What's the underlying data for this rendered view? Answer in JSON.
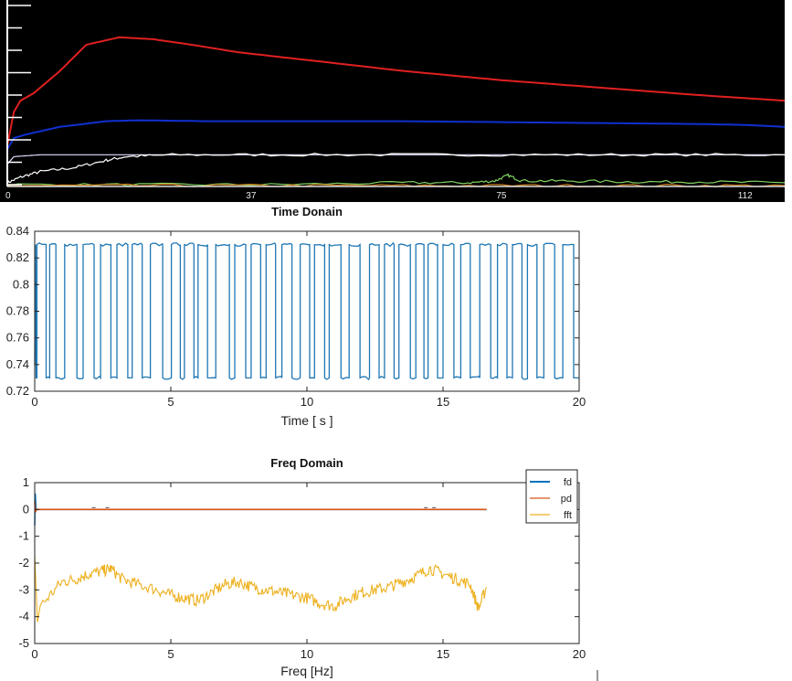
{
  "chart_data": [
    {
      "type": "line",
      "title": "",
      "background": "#000000",
      "grid": false,
      "x_ticks": [
        "0",
        "37",
        "75",
        "112"
      ],
      "xlim": [
        0,
        118
      ],
      "series": [
        {
          "color": "#e02020",
          "x": [
            0,
            1,
            2,
            4,
            8,
            12,
            17,
            22,
            28,
            35,
            45,
            60,
            75,
            90,
            105,
            118
          ],
          "y": [
            0.22,
            0.4,
            0.46,
            0.5,
            0.62,
            0.76,
            0.8,
            0.79,
            0.76,
            0.72,
            0.68,
            0.62,
            0.57,
            0.53,
            0.49,
            0.46
          ]
        },
        {
          "color": "#1030d0",
          "x": [
            0,
            1,
            3,
            8,
            15,
            20,
            30,
            45,
            60,
            75,
            90,
            105,
            112,
            118
          ],
          "y": [
            0.2,
            0.26,
            0.28,
            0.32,
            0.35,
            0.355,
            0.35,
            0.35,
            0.35,
            0.345,
            0.34,
            0.335,
            0.33,
            0.32
          ]
        },
        {
          "color": "#e0e0ff",
          "x": [
            0,
            1,
            5,
            10,
            20,
            40,
            60,
            80,
            100,
            118
          ],
          "y": [
            0.12,
            0.16,
            0.17,
            0.17,
            0.17,
            0.17,
            0.17,
            0.17,
            0.17,
            0.17
          ]
        },
        {
          "color": "#ffffff",
          "x": [
            0,
            2,
            5,
            10,
            15,
            18,
            25,
            40,
            60,
            80,
            100,
            118
          ],
          "y": [
            0.02,
            0.05,
            0.08,
            0.1,
            0.14,
            0.16,
            0.17,
            0.17,
            0.17,
            0.17,
            0.17,
            0.17
          ]
        },
        {
          "color": "#80d060",
          "x": [
            0,
            20,
            40,
            60,
            70,
            74,
            76,
            78,
            85,
            95,
            105,
            118
          ],
          "y": [
            0.01,
            0.01,
            0.01,
            0.02,
            0.02,
            0.03,
            0.06,
            0.03,
            0.03,
            0.025,
            0.025,
            0.02
          ]
        },
        {
          "color": "#d08020",
          "x": [
            0,
            20,
            40,
            60,
            80,
            100,
            118
          ],
          "y": [
            0.005,
            0.005,
            0.005,
            0.005,
            0.005,
            0.005,
            0.005
          ]
        }
      ]
    },
    {
      "type": "line",
      "title": "Time Donain",
      "xlabel": "Time [ s ]",
      "ylabel": "",
      "xlim": [
        0,
        20
      ],
      "ylim": [
        0.72,
        0.84
      ],
      "x_ticks": [
        "0",
        "5",
        "10",
        "15",
        "20"
      ],
      "y_ticks": [
        "0.84",
        "0.82",
        "0.8",
        "0.78",
        "0.76",
        "0.74",
        "0.72"
      ],
      "high_level": 0.83,
      "low_level": 0.73,
      "square_wave_edges": [
        0.08,
        0.42,
        0.55,
        0.78,
        1.1,
        1.55,
        1.78,
        2.18,
        2.42,
        2.8,
        3.02,
        3.42,
        3.58,
        3.95,
        4.25,
        4.7,
        5.02,
        5.35,
        5.5,
        5.85,
        6.0,
        6.35,
        6.65,
        7.15,
        7.35,
        7.75,
        7.95,
        8.3,
        8.5,
        8.85,
        9.08,
        9.45,
        9.75,
        10.1,
        10.28,
        10.65,
        10.82,
        11.25,
        11.55,
        11.95,
        12.3,
        12.65,
        12.85,
        13.2,
        13.38,
        13.8,
        14.0,
        14.3,
        14.45,
        14.8,
        15.0,
        15.4,
        15.65,
        16.0,
        16.35,
        16.75,
        17.0,
        17.35,
        17.55,
        17.9,
        18.1,
        18.45,
        18.7,
        19.1,
        19.4,
        19.8
      ],
      "series": [
        {
          "color": "#1f77b4",
          "x": [
            0,
            20
          ],
          "y": [
            0.73,
            0.83
          ]
        }
      ]
    },
    {
      "type": "line",
      "title": "Freq Domain",
      "xlabel": "Freq [Hz]",
      "ylabel": "",
      "xlim": [
        0,
        20
      ],
      "ylim": [
        -5,
        1
      ],
      "x_ticks": [
        "0",
        "5",
        "10",
        "15",
        "20"
      ],
      "y_ticks": [
        "1",
        "0",
        "-1",
        "-2",
        "-3",
        "-4",
        "-5"
      ],
      "legend": "top-right",
      "series": [
        {
          "name": "fd",
          "color": "#0072bd",
          "x": [
            0,
            16.6
          ],
          "y": [
            0,
            0
          ]
        },
        {
          "name": "pd",
          "color": "#d95319",
          "x": [
            0,
            16.6
          ],
          "y": [
            0,
            0
          ]
        },
        {
          "name": "fft",
          "color": "#edb120",
          "x": [
            0.3,
            1.0,
            1.5,
            2.0,
            2.5,
            2.8,
            3.2,
            3.8,
            4.5,
            5.0,
            5.5,
            6.0,
            6.5,
            7.0,
            7.5,
            8.0,
            8.5,
            9.0,
            9.5,
            10.0,
            10.5,
            11.0,
            11.5,
            12.0,
            12.5,
            13.0,
            13.5,
            14.0,
            14.5,
            15.0,
            15.5,
            16.0,
            16.3,
            16.6
          ],
          "y": [
            -3.5,
            -2.7,
            -2.6,
            -2.4,
            -2.3,
            -2.2,
            -2.6,
            -2.8,
            -3.0,
            -3.2,
            -3.3,
            -3.4,
            -3.1,
            -2.8,
            -2.7,
            -2.9,
            -3.0,
            -3.1,
            -3.2,
            -3.3,
            -3.5,
            -3.6,
            -3.3,
            -3.1,
            -3.0,
            -2.9,
            -2.7,
            -2.5,
            -2.2,
            -2.4,
            -2.6,
            -2.8,
            -3.7,
            -2.9
          ]
        }
      ]
    }
  ]
}
